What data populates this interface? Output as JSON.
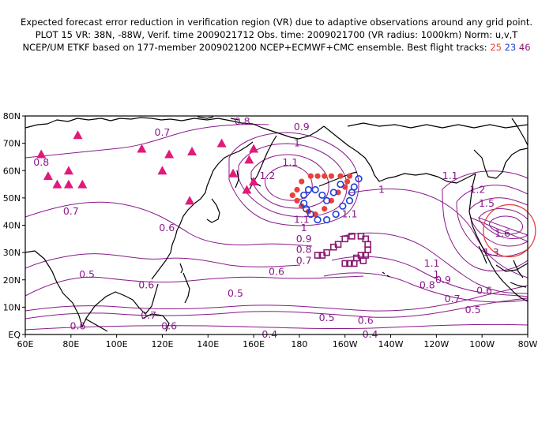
{
  "header": {
    "line1": "Expected forecast error reduction in verification region (VR) due to adaptive observations around any grid point.",
    "line2": "PLOT 15 VR: 38N, -88W, Verif. time 2009021712 Obs. time: 2009021700 (VR radius: 1000km) Norm: u,v,T",
    "line3": "NCEP/UM ETKF based on 177-member 2009021200 NCEP+ECMWF+CMC ensemble. Best flight tracks:",
    "tracks": [
      "25",
      "23",
      "46"
    ]
  },
  "axes": {
    "x_ticks": [
      "60E",
      "80E",
      "100E",
      "120E",
      "140E",
      "160E",
      "180",
      "160W",
      "140W",
      "120W",
      "100W",
      "80W"
    ],
    "y_ticks": [
      "EQ",
      "10N",
      "20N",
      "30N",
      "40N",
      "50N",
      "60N",
      "70N",
      "80N"
    ]
  },
  "contour_labels": [
    {
      "text": "0.8",
      "lon": 67,
      "lat": 63
    },
    {
      "text": "0.7",
      "lon": 120,
      "lat": 74
    },
    {
      "text": "0.8",
      "lon": 155,
      "lat": 78
    },
    {
      "text": "0.7",
      "lon": 80,
      "lat": 45
    },
    {
      "text": "0.6",
      "lon": 122,
      "lat": 39
    },
    {
      "text": "0.9",
      "lon": 181,
      "lat": 76
    },
    {
      "text": "1",
      "lon": 179,
      "lat": 70
    },
    {
      "text": "1.1",
      "lon": 176,
      "lat": 63
    },
    {
      "text": "1.2",
      "lon": 166,
      "lat": 58
    },
    {
      "text": "1",
      "lon": 216,
      "lat": 53
    },
    {
      "text": "1.1",
      "lon": 202,
      "lat": 44
    },
    {
      "text": "1.1",
      "lon": 246,
      "lat": 58
    },
    {
      "text": "1.2",
      "lon": 258,
      "lat": 53
    },
    {
      "text": "1.5",
      "lon": 262,
      "lat": 48
    },
    {
      "text": "1.6",
      "lon": 269,
      "lat": 37
    },
    {
      "text": "1.3",
      "lon": 264,
      "lat": 30
    },
    {
      "text": "1.1",
      "lon": 238,
      "lat": 26
    },
    {
      "text": "1",
      "lon": 240,
      "lat": 22
    },
    {
      "text": "0.9",
      "lon": 243,
      "lat": 20
    },
    {
      "text": "0.8",
      "lon": 236,
      "lat": 18
    },
    {
      "text": "0.7",
      "lon": 247,
      "lat": 13
    },
    {
      "text": "0.6",
      "lon": 261,
      "lat": 16
    },
    {
      "text": "0.5",
      "lon": 256,
      "lat": 9
    },
    {
      "text": "1.1",
      "lon": 181,
      "lat": 42
    },
    {
      "text": "1",
      "lon": 182,
      "lat": 39
    },
    {
      "text": "0.9",
      "lon": 182,
      "lat": 35
    },
    {
      "text": "0.8",
      "lon": 182,
      "lat": 31
    },
    {
      "text": "0.7",
      "lon": 182,
      "lat": 27
    },
    {
      "text": "0.6",
      "lon": 170,
      "lat": 23
    },
    {
      "text": "0.5",
      "lon": 87,
      "lat": 22
    },
    {
      "text": "0.6",
      "lon": 113,
      "lat": 18
    },
    {
      "text": "0.5",
      "lon": 152,
      "lat": 15
    },
    {
      "text": "0.7",
      "lon": 114,
      "lat": 7
    },
    {
      "text": "0.6",
      "lon": 123,
      "lat": 3
    },
    {
      "text": "0.6",
      "lon": 83,
      "lat": 3
    },
    {
      "text": "0.5",
      "lon": 192,
      "lat": 6
    },
    {
      "text": "0.6",
      "lon": 209,
      "lat": 5
    },
    {
      "text": "0.4",
      "lon": 167,
      "lat": 0
    },
    {
      "text": "0.4",
      "lon": 211,
      "lat": 0
    }
  ],
  "map_colors": {
    "coast": "#000000",
    "contour": "#8a1a8a",
    "track25": "#e8413c",
    "track23": "#1c3fd8",
    "track46": "#8a1a6e",
    "triangles": "#e0197a",
    "vr_circle": "#e8413c"
  },
  "markers": {
    "track25_red_dots": [
      [
        185,
        58
      ],
      [
        188,
        58
      ],
      [
        191,
        58
      ],
      [
        194,
        58
      ],
      [
        198,
        58
      ],
      [
        202,
        58
      ],
      [
        181,
        56
      ],
      [
        179,
        53
      ],
      [
        177,
        51
      ],
      [
        179,
        49
      ],
      [
        181,
        47
      ],
      [
        184,
        45
      ],
      [
        187,
        44
      ],
      [
        191,
        46
      ],
      [
        194,
        49
      ],
      [
        197,
        52
      ],
      [
        200,
        54
      ],
      [
        201,
        56
      ]
    ],
    "track23_blue_circles": [
      [
        206,
        57
      ],
      [
        204,
        54
      ],
      [
        203,
        52
      ],
      [
        202,
        49
      ],
      [
        199,
        47
      ],
      [
        196,
        44
      ],
      [
        192,
        42
      ],
      [
        188,
        42
      ],
      [
        185,
        44
      ],
      [
        183,
        46
      ],
      [
        182,
        48
      ],
      [
        182,
        51
      ],
      [
        184,
        53
      ],
      [
        187,
        53
      ],
      [
        190,
        51
      ],
      [
        192,
        49
      ],
      [
        195,
        52
      ],
      [
        198,
        55
      ]
    ],
    "track46_purple_squares": [
      [
        208,
        27
      ],
      [
        209,
        29
      ],
      [
        210,
        31
      ],
      [
        210,
        33
      ],
      [
        209,
        35
      ],
      [
        207,
        36
      ],
      [
        203,
        36
      ],
      [
        200,
        35
      ],
      [
        197,
        33
      ],
      [
        195,
        32
      ],
      [
        192,
        30
      ],
      [
        190,
        29
      ],
      [
        188,
        29
      ],
      [
        200,
        26
      ],
      [
        202,
        26
      ],
      [
        204,
        26
      ],
      [
        205,
        28
      ],
      [
        207,
        29
      ]
    ],
    "raob_triangles": [
      [
        67,
        66
      ],
      [
        83,
        73
      ],
      [
        111,
        68
      ],
      [
        123,
        66
      ],
      [
        133,
        67
      ],
      [
        146,
        70
      ],
      [
        160,
        68
      ],
      [
        70,
        58
      ],
      [
        79,
        60
      ],
      [
        79,
        55
      ],
      [
        85,
        55
      ],
      [
        74,
        55
      ],
      [
        120,
        60
      ],
      [
        132,
        49
      ],
      [
        151,
        59
      ],
      [
        158,
        64
      ],
      [
        160,
        56
      ],
      [
        157,
        53
      ]
    ],
    "vr_circle_center": [
      -88,
      38
    ]
  }
}
